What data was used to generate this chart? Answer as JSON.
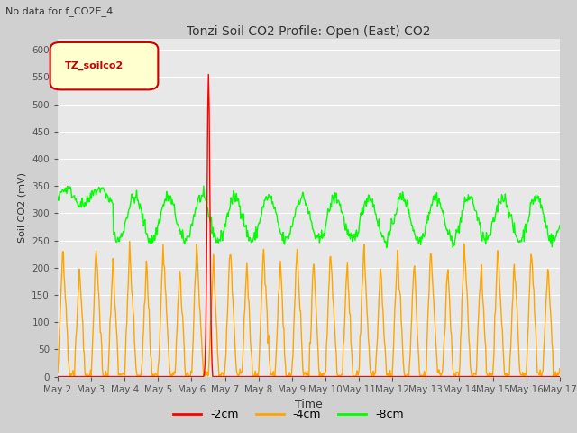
{
  "title": "Tonzi Soil CO2 Profile: Open (East) CO2",
  "subtitle": "No data for f_CO2E_4",
  "ylabel": "Soil CO2 (mV)",
  "xlabel": "Time",
  "legend_label_in_plot": "TZ_soilco2",
  "legend_entries": [
    "-2cm",
    "-4cm",
    "-8cm"
  ],
  "legend_colors": [
    "#ff0000",
    "#ffa500",
    "#00ff00"
  ],
  "ylim": [
    0,
    620
  ],
  "yticks": [
    0,
    50,
    100,
    150,
    200,
    250,
    300,
    350,
    400,
    450,
    500,
    550,
    600
  ],
  "xtick_labels": [
    "May 2",
    "May 3",
    "May 4",
    "May 5",
    "May 6",
    "May 7",
    "May 8",
    "May 9",
    "May 10",
    "May 11",
    "May 12",
    "May 13",
    "May 14",
    "May 15",
    "May 16",
    "May 17"
  ],
  "bg_color": "#d0d0d0",
  "plot_bg_color": "#e8e8e8",
  "grid_color": "#ffffff",
  "line_width": 1.0,
  "color_2cm": "#ff0000",
  "color_4cm": "#ffa500",
  "color_8cm": "#00ff00"
}
